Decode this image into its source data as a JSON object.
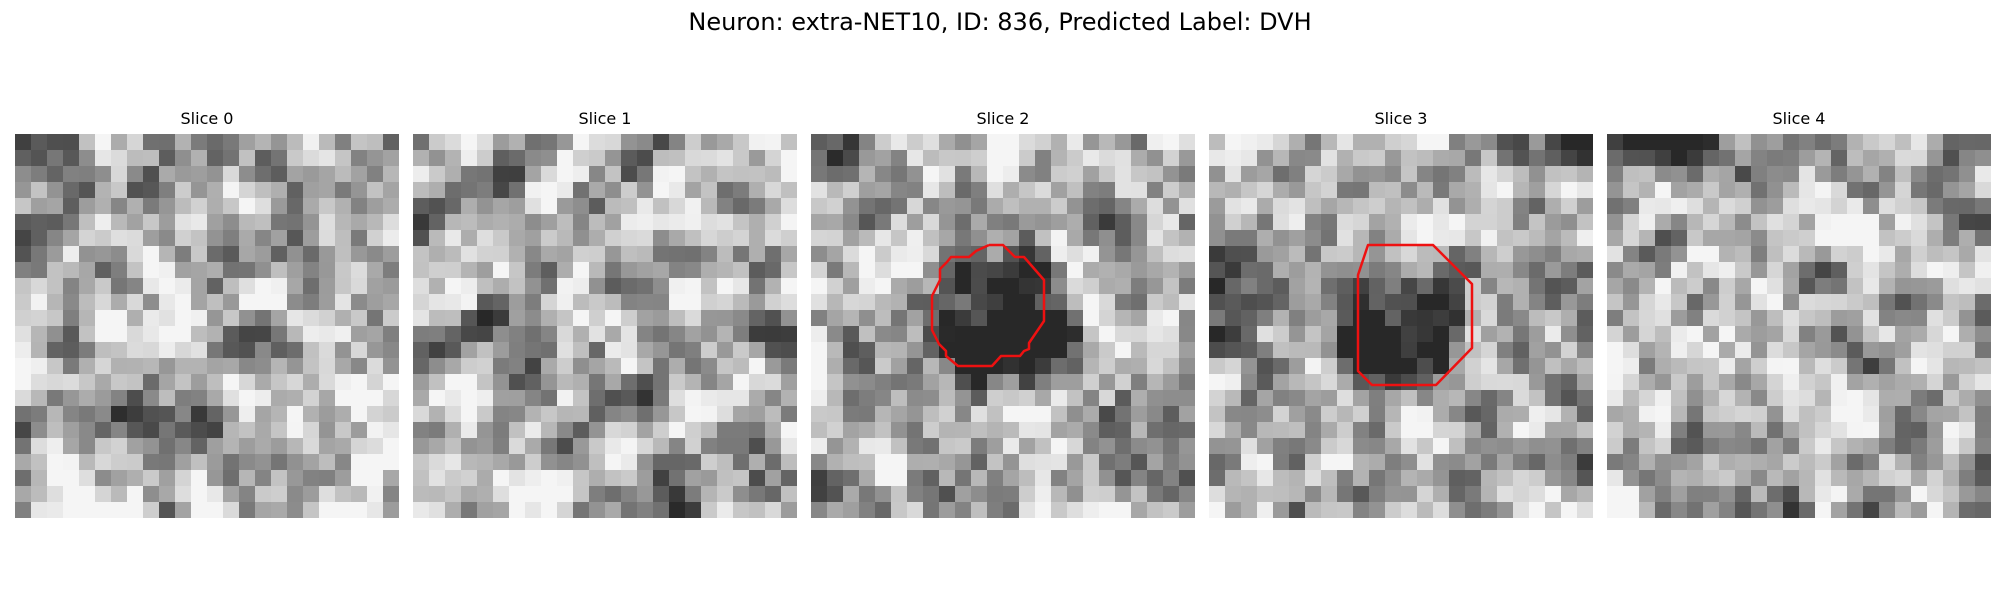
{
  "figure": {
    "title": "Neuron: extra-NET10, ID: 836, Predicted Label: DVH"
  },
  "panels": [
    {
      "title": "Slice 0",
      "has_contour": false,
      "image": "grayscale-noise-texture"
    },
    {
      "title": "Slice 1",
      "has_contour": false,
      "image": "grayscale-noise-texture"
    },
    {
      "title": "Slice 2",
      "has_contour": true,
      "image": "grayscale-dark-blob-center"
    },
    {
      "title": "Slice 3",
      "has_contour": true,
      "image": "grayscale-dark-blob-center"
    },
    {
      "title": "Slice 4",
      "has_contour": false,
      "image": "grayscale-noise-texture"
    }
  ],
  "colors": {
    "contour": "#ee1111",
    "background": "#ffffff"
  }
}
